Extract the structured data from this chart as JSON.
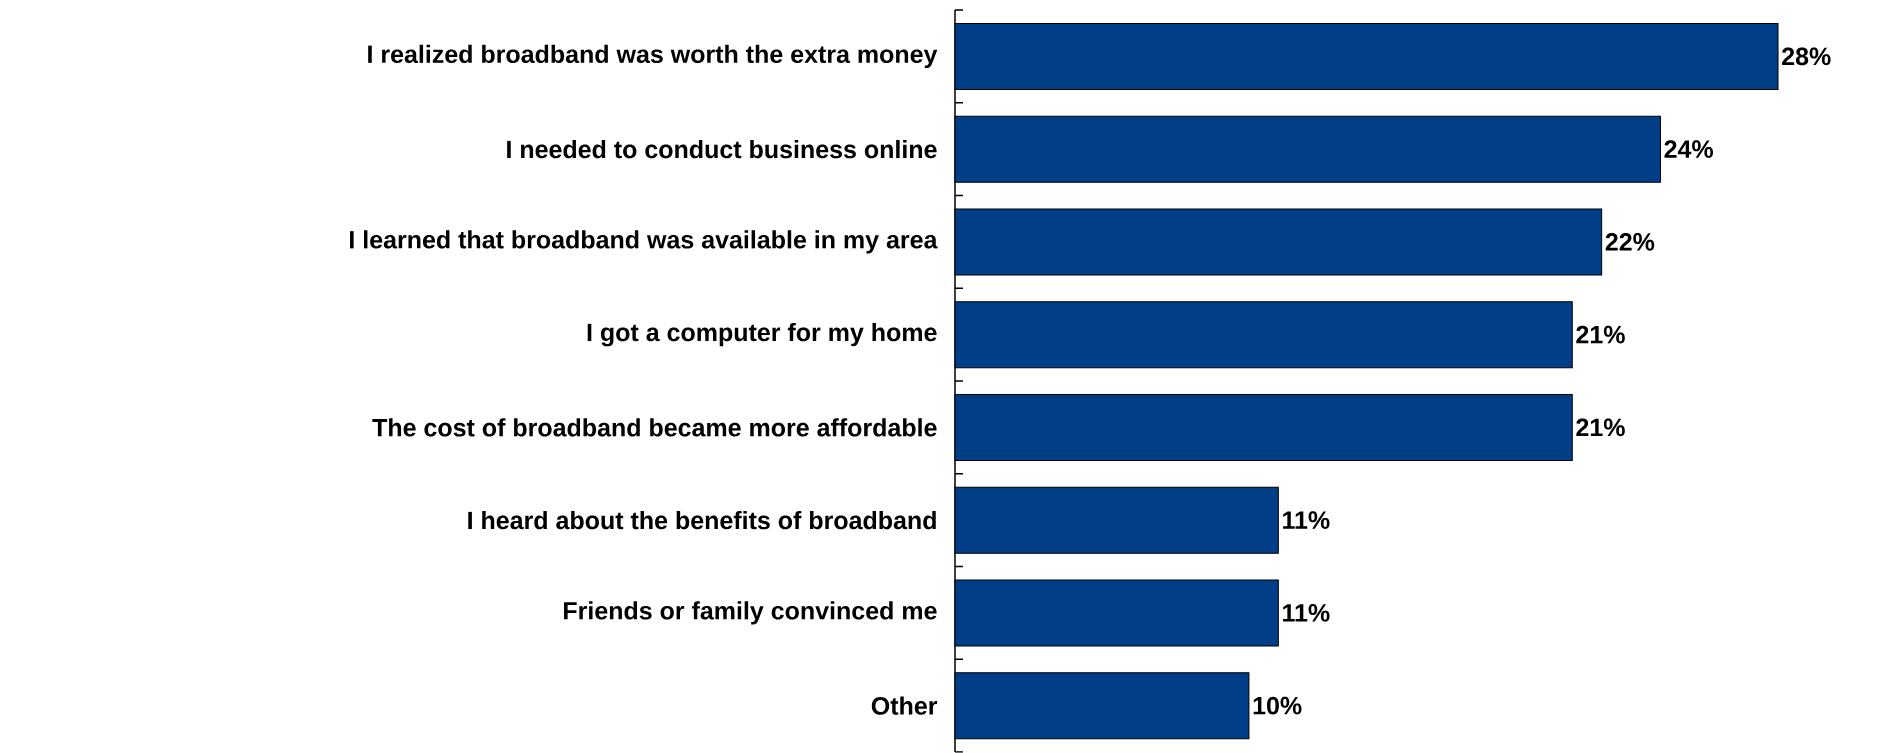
{
  "chart_data": {
    "type": "bar",
    "orientation": "horizontal",
    "categories": [
      "I realized broadband was worth the extra money",
      "I needed to conduct business online",
      "I learned that broadband was available in my area",
      "I got a computer for my home",
      "The cost of broadband became more affordable",
      "I heard about the benefits of broadband",
      "Friends or family convinced me",
      "Other"
    ],
    "values": [
      28,
      24,
      22,
      21,
      21,
      11,
      11,
      10
    ],
    "value_labels": [
      "28%",
      "24%",
      "22%",
      "21%",
      "21%",
      "11%",
      "11%",
      "10%"
    ],
    "color": "#003f87"
  }
}
